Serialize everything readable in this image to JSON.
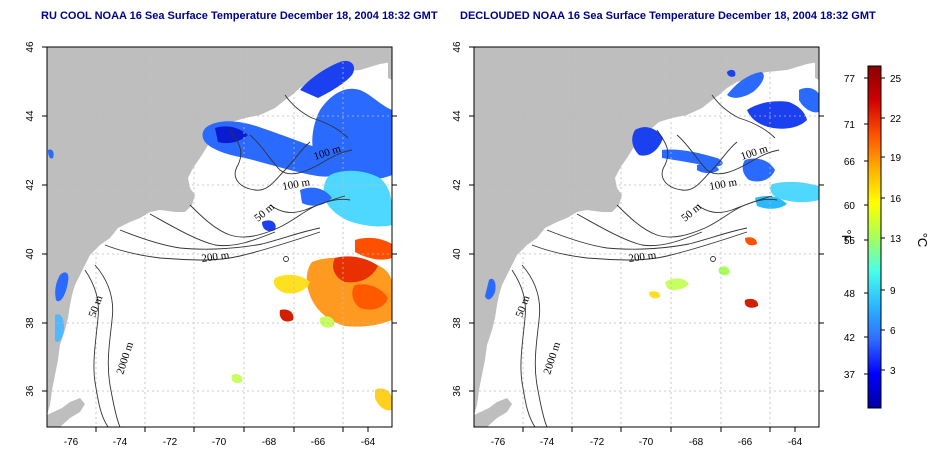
{
  "panels": [
    {
      "id": "left",
      "title": "RU COOL NOAA 16 Sea Surface Temperature December 18, 2004 18:32 GMT",
      "contour_labels": [
        "100 m",
        "100 m",
        "50 m",
        "200 m",
        "50 m",
        "2000 m"
      ]
    },
    {
      "id": "right",
      "title": "DECLOUDED NOAA 16 Sea Surface Temperature December 18, 2004 18:32 GMT",
      "contour_labels": [
        "100 m",
        "100 m",
        "50 m",
        "200 m",
        "50 m",
        "2000 m"
      ]
    }
  ],
  "axes": {
    "x_ticks": [
      "-76",
      "-74",
      "-72",
      "-70",
      "-68",
      "-66",
      "-64"
    ],
    "y_ticks": [
      "36",
      "38",
      "40",
      "42",
      "44",
      "46"
    ],
    "lon_range": [
      -77,
      -63
    ],
    "lat_range": [
      35,
      46
    ]
  },
  "colorbar": {
    "fahrenheit_ticks": [
      "77",
      "71",
      "66",
      "60",
      "55",
      "48",
      "42",
      "37"
    ],
    "celsius_ticks": [
      "25",
      "22",
      "19",
      "16",
      "13",
      "9",
      "6",
      "3"
    ],
    "fahrenheit_unit": "°F",
    "celsius_unit": "°C",
    "colors": [
      "#0000a0",
      "#0000ff",
      "#2f6cff",
      "#2ab8ff",
      "#48ffea",
      "#a8ff5a",
      "#ffff00",
      "#ffb000",
      "#ff5000",
      "#d00000",
      "#8b0000"
    ]
  },
  "colors": {
    "land": "#bebebe",
    "water": "#ffffff",
    "grid": "#bbbbbb",
    "title": "#00008b"
  }
}
